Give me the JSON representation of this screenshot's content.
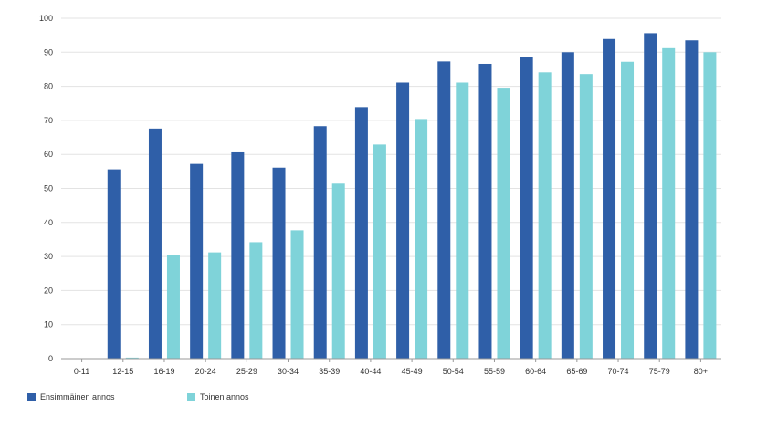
{
  "chart_data": {
    "type": "bar",
    "categories": [
      "0-11",
      "12-15",
      "16-19",
      "20-24",
      "25-29",
      "30-34",
      "35-39",
      "40-44",
      "45-49",
      "50-54",
      "55-59",
      "60-64",
      "65-69",
      "70-74",
      "75-79",
      "80+"
    ],
    "series": [
      {
        "name": "Ensimmäinen annos",
        "color": "#2f5fa8",
        "values": [
          0,
          55.6,
          67.6,
          57.2,
          60.6,
          56.1,
          68.3,
          73.9,
          81.1,
          87.3,
          86.6,
          88.6,
          90.0,
          93.9,
          95.6,
          93.5
        ]
      },
      {
        "name": "Toinen annos",
        "color": "#7fd3d9",
        "values": [
          0,
          0.3,
          30.3,
          31.2,
          34.2,
          37.7,
          51.4,
          62.9,
          70.4,
          81.1,
          79.6,
          84.1,
          83.6,
          87.2,
          91.2,
          90.0
        ]
      }
    ],
    "ylim": [
      0,
      100
    ],
    "yticks": [
      0,
      10,
      20,
      30,
      40,
      50,
      60,
      70,
      80,
      90,
      100
    ],
    "grid": true,
    "legend": "bottom-left"
  }
}
